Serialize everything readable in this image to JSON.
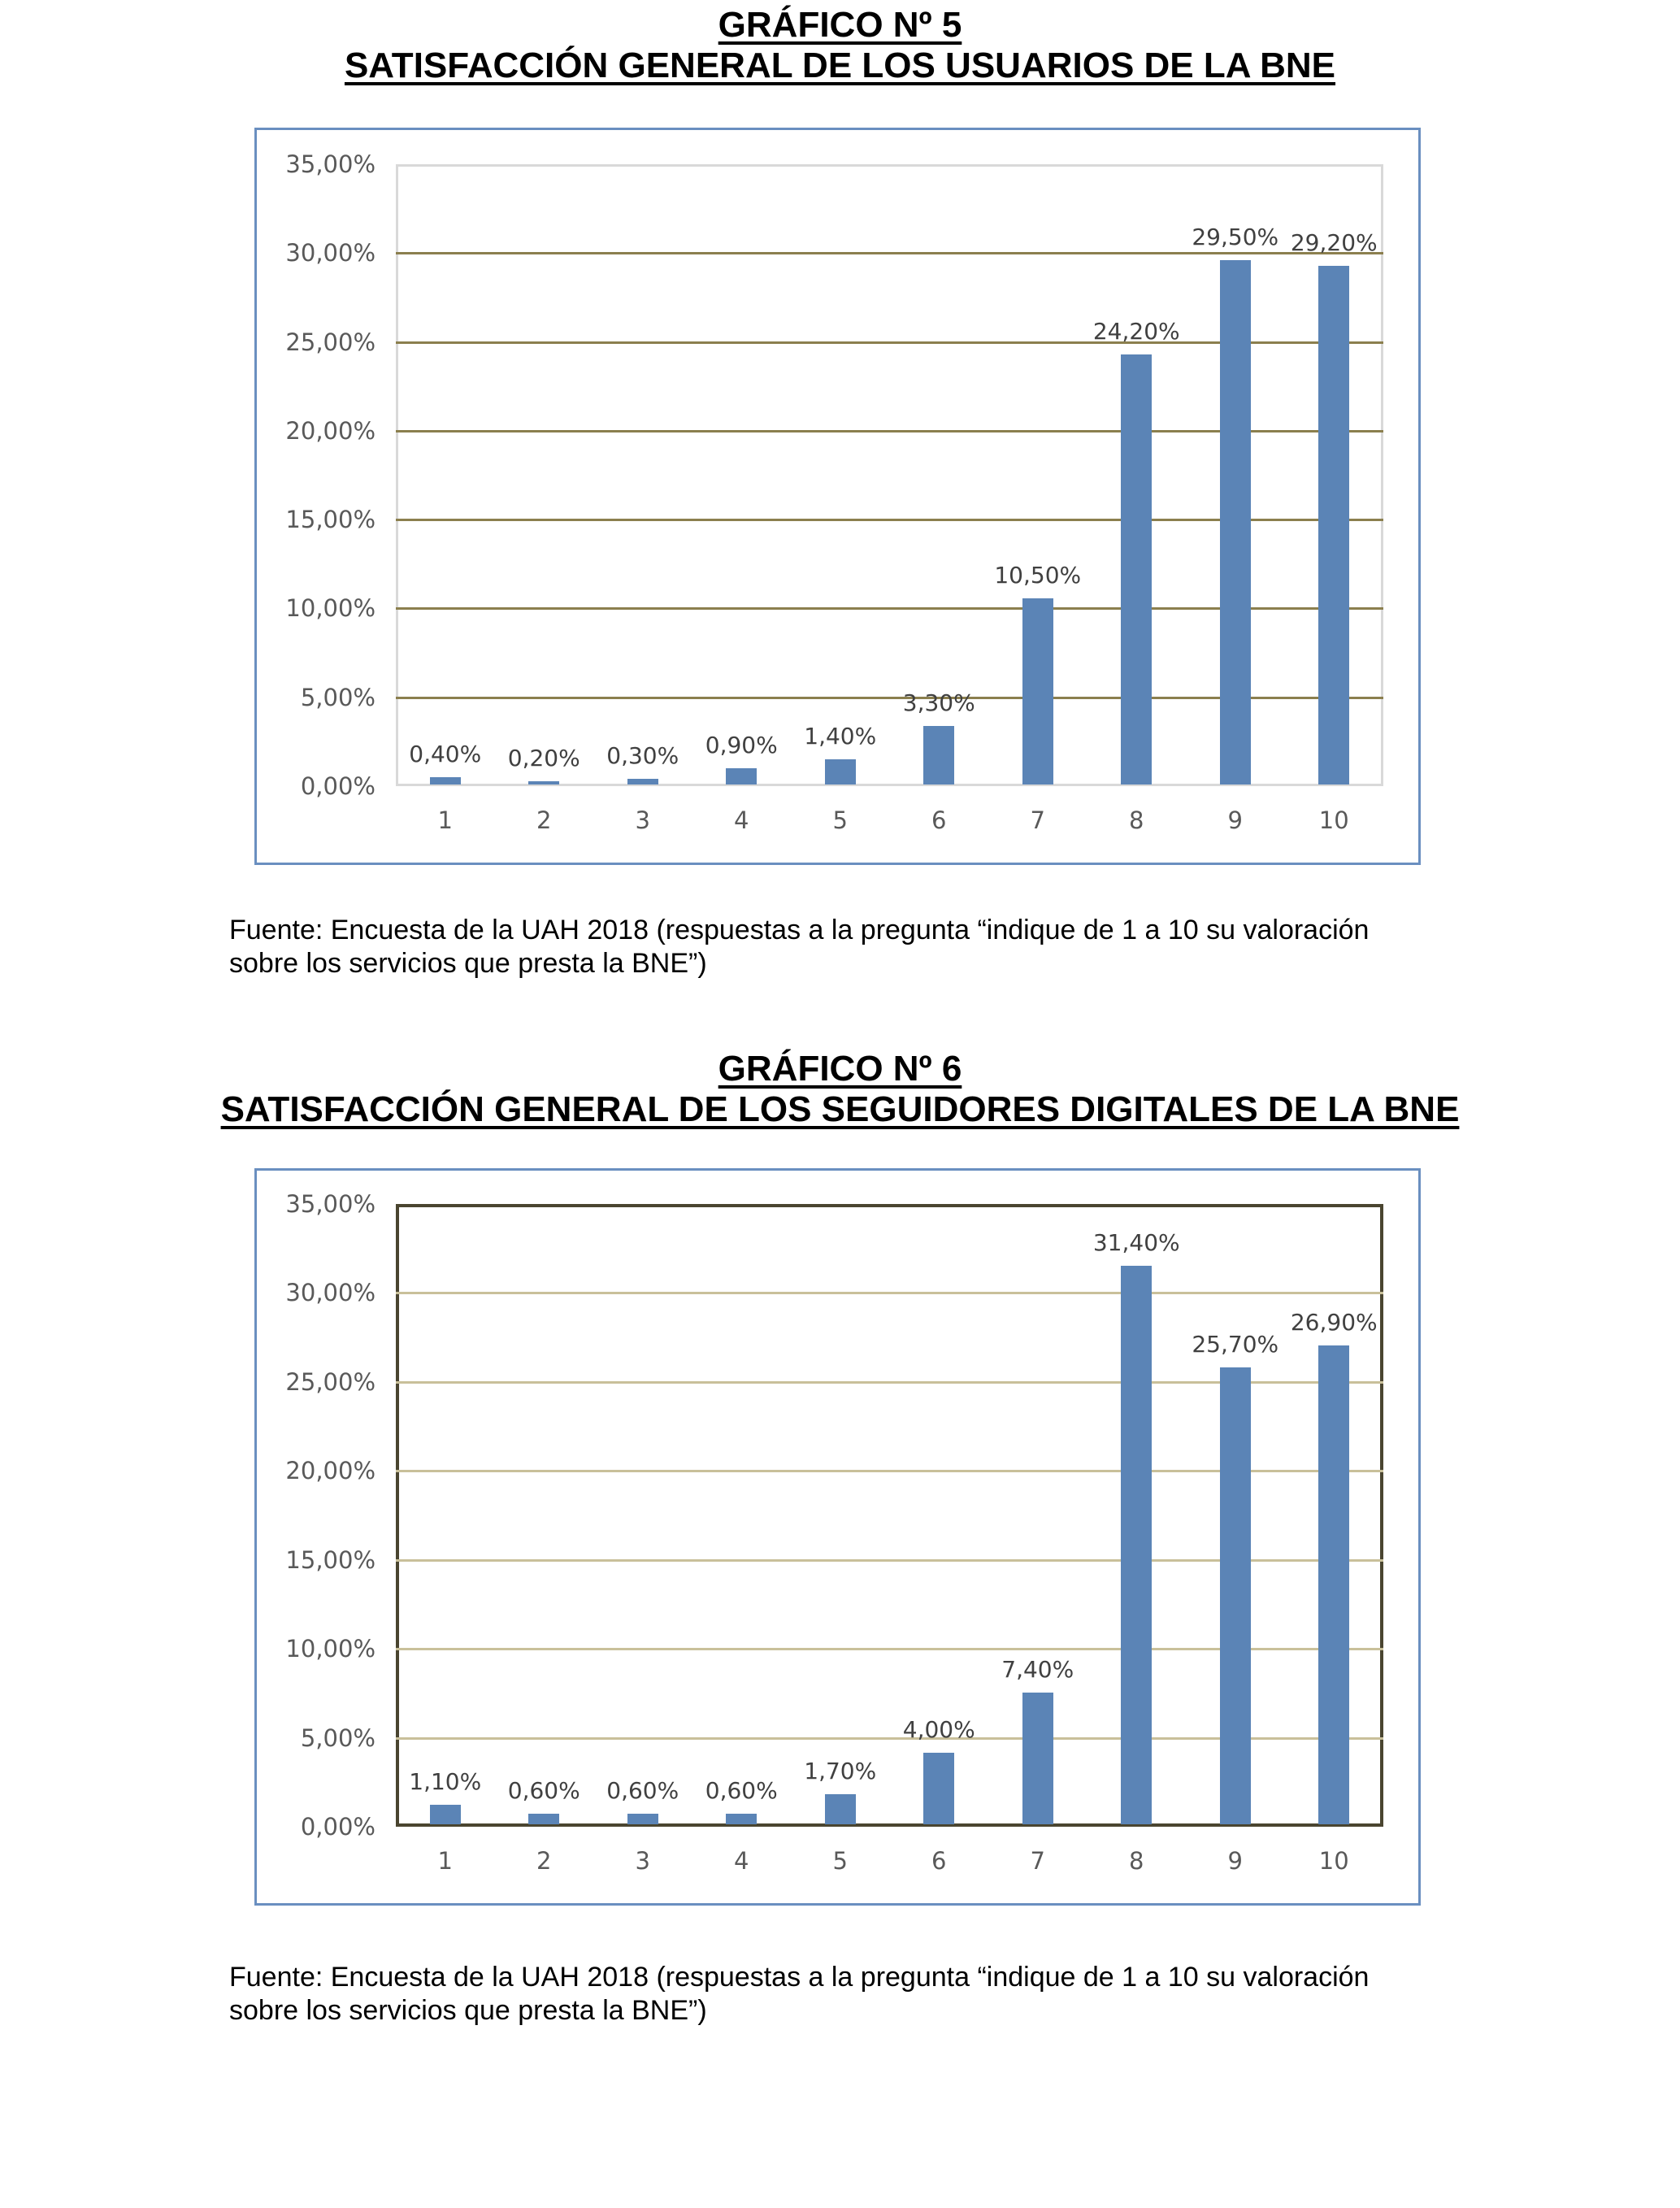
{
  "charts": [
    {
      "heading": "GRÁFICO Nº 5",
      "title": "SATISFACCIÓN GENERAL DE LOS USUARIOS DE LA BNE",
      "source_line1": "Fuente: Encuesta de la UAH 2018 (respuestas a la pregunta “indique de 1 a 10 su valoración",
      "source_line2": "sobre los servicios que presta la BNE”)"
    },
    {
      "heading": "GRÁFICO Nº 6",
      "title": "SATISFACCIÓN GENERAL DE LOS SEGUIDORES DIGITALES DE LA BNE",
      "source_line1": "Fuente: Encuesta de la UAH 2018 (respuestas a la pregunta “indique de 1 a 10 su valoración",
      "source_line2": "sobre los servicios que presta la BNE”)"
    }
  ],
  "colors": {
    "bar": "#5b84b6",
    "frame": "#6a8fc0",
    "gridline_chart5": "#8b7f4e",
    "gridline_chart6": "#c9c09a",
    "plot_border_chart6": "#4a4530"
  },
  "chart_data": [
    {
      "type": "bar",
      "title": "GRÁFICO Nº 5 — SATISFACCIÓN GENERAL DE LOS USUARIOS DE LA BNE",
      "categories": [
        "1",
        "2",
        "3",
        "4",
        "5",
        "6",
        "7",
        "8",
        "9",
        "10"
      ],
      "values": [
        0.4,
        0.2,
        0.3,
        0.9,
        1.4,
        3.3,
        10.5,
        24.2,
        29.5,
        29.2
      ],
      "value_labels": [
        "0,40%",
        "0,20%",
        "0,30%",
        "0,90%",
        "1,40%",
        "3,30%",
        "10,50%",
        "24,20%",
        "29,50%",
        "29,20%"
      ],
      "xlabel": "",
      "ylabel": "",
      "ylim": [
        0,
        35
      ],
      "yticks": [
        "0,00%",
        "5,00%",
        "10,00%",
        "15,00%",
        "20,00%",
        "25,00%",
        "30,00%",
        "35,00%"
      ],
      "grid": true,
      "legend": null
    },
    {
      "type": "bar",
      "title": "GRÁFICO Nº 6 — SATISFACCIÓN GENERAL DE LOS SEGUIDORES DIGITALES DE LA BNE",
      "categories": [
        "1",
        "2",
        "3",
        "4",
        "5",
        "6",
        "7",
        "8",
        "9",
        "10"
      ],
      "values": [
        1.1,
        0.6,
        0.6,
        0.6,
        1.7,
        4.0,
        7.4,
        31.4,
        25.7,
        26.9
      ],
      "value_labels": [
        "1,10%",
        "0,60%",
        "0,60%",
        "0,60%",
        "1,70%",
        "4,00%",
        "7,40%",
        "31,40%",
        "25,70%",
        "26,90%"
      ],
      "xlabel": "",
      "ylabel": "",
      "ylim": [
        0,
        35
      ],
      "yticks": [
        "0,00%",
        "5,00%",
        "10,00%",
        "15,00%",
        "20,00%",
        "25,00%",
        "30,00%",
        "35,00%"
      ],
      "grid": true,
      "legend": null
    }
  ]
}
